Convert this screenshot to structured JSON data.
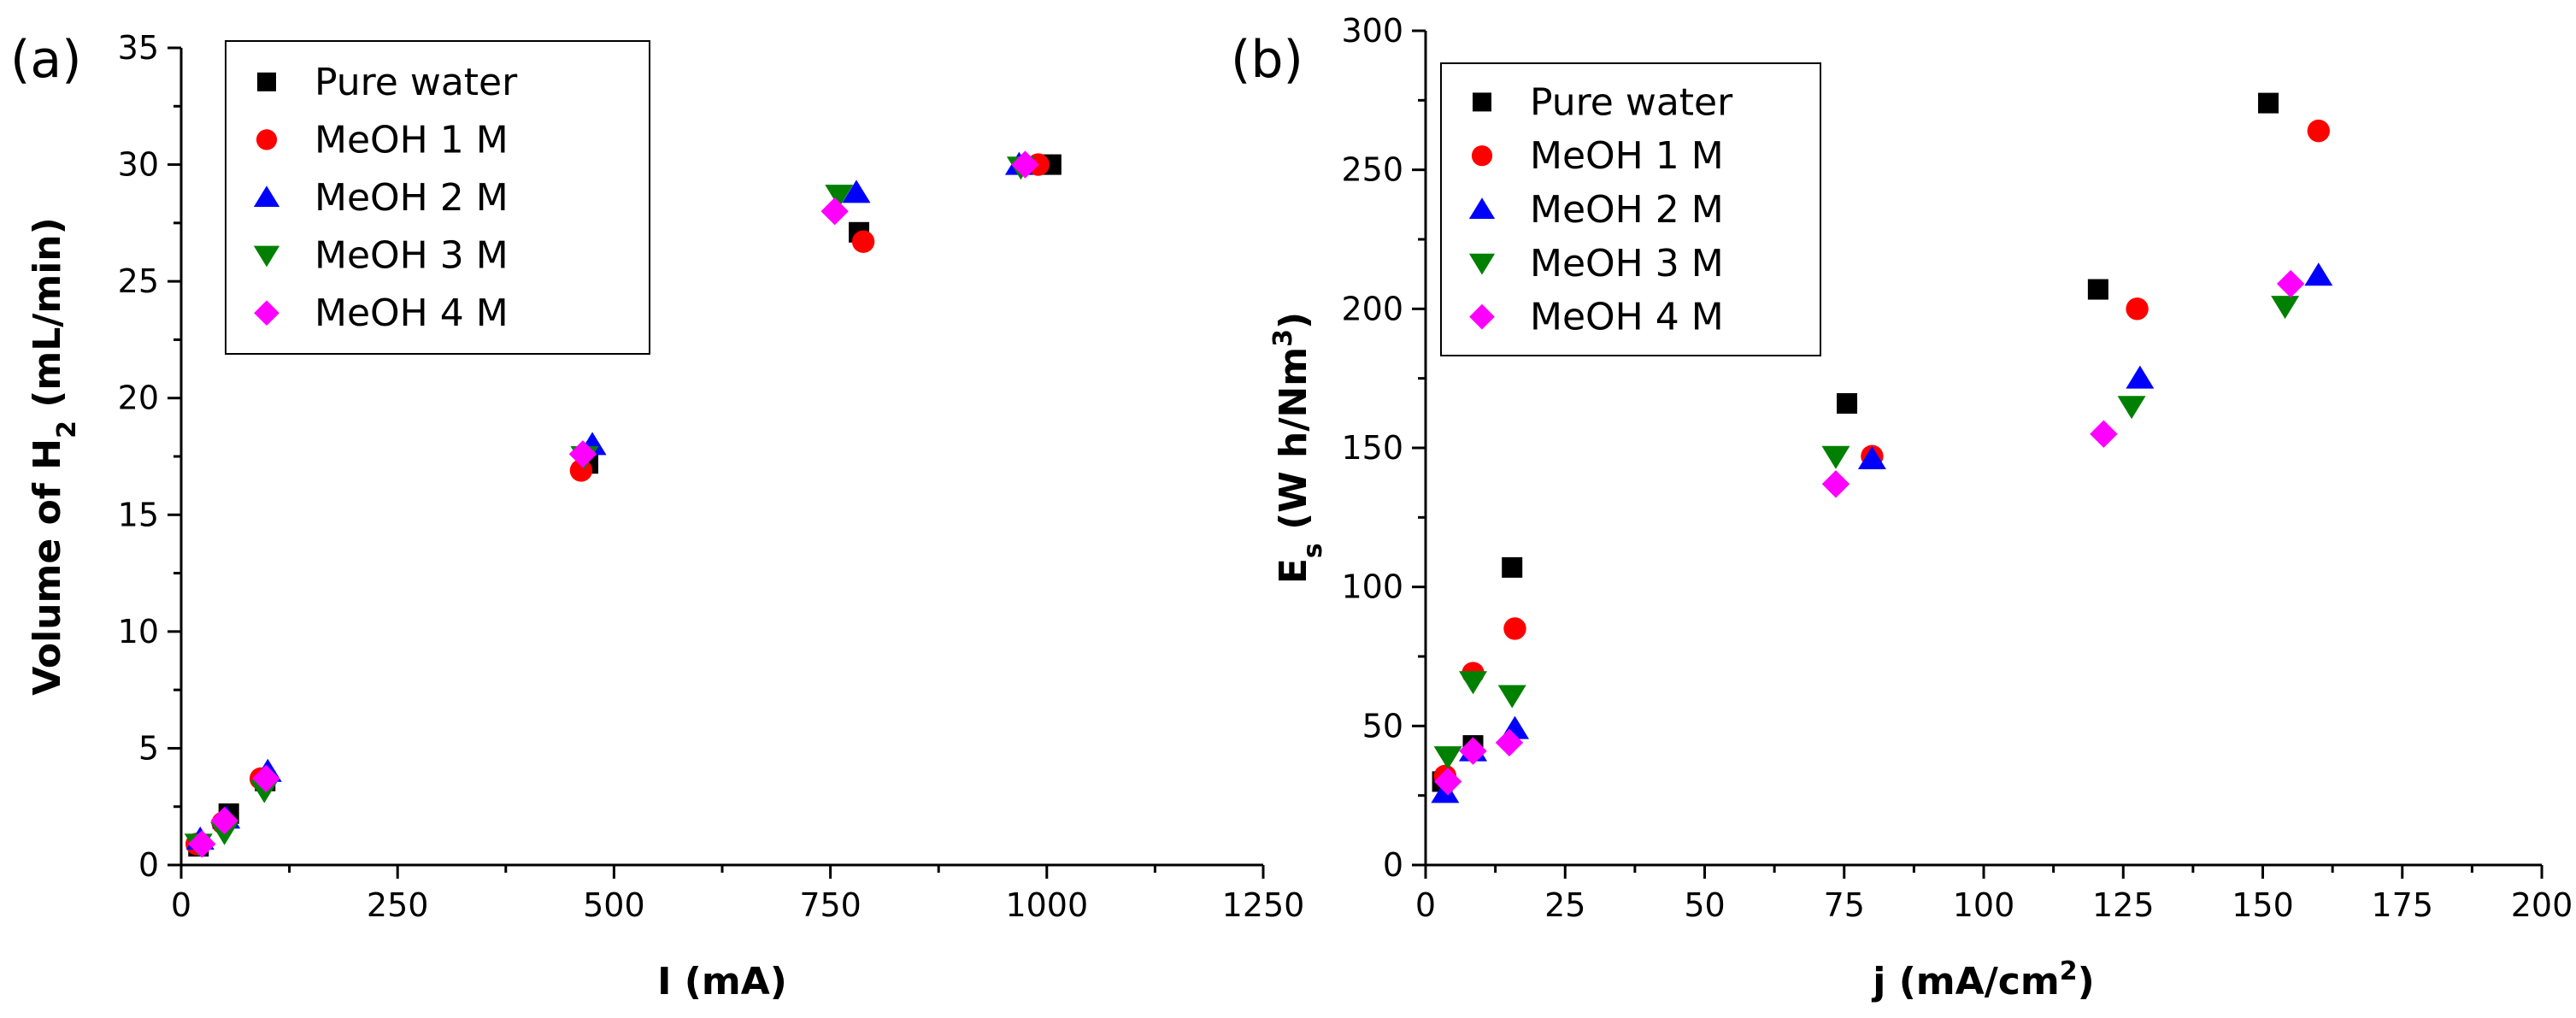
{
  "chart_data": [
    {
      "type": "scatter",
      "panel_label": "(a)",
      "xlabel": "I (mA)",
      "ylabel": "Volume of H",
      "ylabel_sub": "2",
      "ylabel_suffix": " (mL/min)",
      "xlim": [
        0,
        1250
      ],
      "ylim": [
        0,
        35
      ],
      "xticks": [
        0,
        250,
        500,
        750,
        1000,
        1250
      ],
      "yticks": [
        0,
        5,
        10,
        15,
        20,
        25,
        30,
        35
      ],
      "legend_position": "top-left",
      "series": [
        {
          "name": "Pure water",
          "marker": "square",
          "color": "#000000",
          "x": [
            20,
            55,
            97,
            470,
            783,
            1005
          ],
          "y": [
            0.8,
            2.2,
            3.6,
            17.2,
            27.1,
            30.0
          ]
        },
        {
          "name": "MeOH 1 M",
          "marker": "circle",
          "color": "#ff0000",
          "x": [
            18,
            48,
            92,
            462,
            788,
            990
          ],
          "y": [
            0.9,
            1.8,
            3.7,
            16.9,
            26.7,
            30.0
          ]
        },
        {
          "name": "MeOH 2 M",
          "marker": "triangle-up",
          "color": "#0000ff",
          "x": [
            22,
            52,
            100,
            475,
            780,
            968
          ],
          "y": [
            1.1,
            2.0,
            4.0,
            18.0,
            28.8,
            30.0
          ]
        },
        {
          "name": "MeOH 3 M",
          "marker": "triangle-down",
          "color": "#008000",
          "x": [
            20,
            50,
            96,
            466,
            760,
            970
          ],
          "y": [
            0.9,
            1.4,
            3.2,
            17.5,
            28.7,
            29.9
          ]
        },
        {
          "name": "MeOH 4 M",
          "marker": "diamond",
          "color": "#ff00ff",
          "x": [
            24,
            50,
            98,
            464,
            755,
            975
          ],
          "y": [
            0.9,
            1.9,
            3.7,
            17.6,
            28.0,
            30.0
          ]
        }
      ]
    },
    {
      "type": "scatter",
      "panel_label": "(b)",
      "xlabel": "j (mA/cm",
      "xlabel_sup": "2",
      "xlabel_suffix": ")",
      "ylabel": "E",
      "ylabel_sub": "s",
      "ylabel_mid": " (W h/Nm",
      "ylabel_sup": "3",
      "ylabel_suffix": ")",
      "xlim": [
        0,
        200
      ],
      "ylim": [
        0,
        300
      ],
      "xticks": [
        0,
        25,
        50,
        75,
        100,
        125,
        150,
        175,
        200
      ],
      "yticks": [
        0,
        50,
        100,
        150,
        200,
        250,
        300
      ],
      "legend_position": "top-left",
      "series": [
        {
          "name": "Pure water",
          "marker": "square",
          "color": "#000000",
          "x": [
            3,
            8.5,
            15.5,
            75.5,
            120.5,
            151
          ],
          "y": [
            30,
            43,
            107,
            166,
            207,
            274
          ]
        },
        {
          "name": "MeOH 1 M",
          "marker": "circle",
          "color": "#ff0000",
          "x": [
            3.5,
            8.5,
            16,
            80,
            127.5,
            160
          ],
          "y": [
            32,
            69,
            85,
            147,
            200,
            264
          ]
        },
        {
          "name": "MeOH 2 M",
          "marker": "triangle-up",
          "color": "#0000ff",
          "x": [
            3.5,
            8.5,
            16,
            80,
            128,
            160
          ],
          "y": [
            26,
            41,
            49,
            146,
            175,
            212
          ]
        },
        {
          "name": "MeOH 3 M",
          "marker": "triangle-down",
          "color": "#008000",
          "x": [
            4,
            8.5,
            15.5,
            73.5,
            126.5,
            154
          ],
          "y": [
            39,
            66,
            61,
            147,
            165,
            201
          ]
        },
        {
          "name": "MeOH 4 M",
          "marker": "diamond",
          "color": "#ff00ff",
          "x": [
            4,
            8.5,
            15,
            73.5,
            121.5,
            155
          ],
          "y": [
            30,
            41,
            44,
            137,
            155,
            209
          ]
        }
      ]
    }
  ]
}
